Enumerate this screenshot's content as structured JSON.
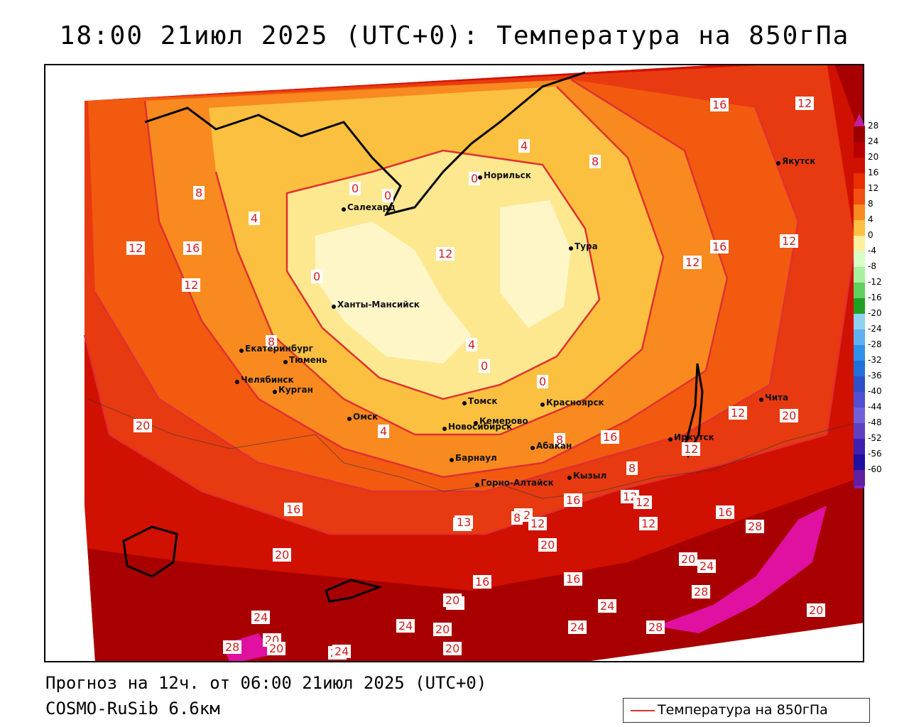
{
  "title": "18:00 21июл 2025 (UTC+0): Температура на 850гПа",
  "footer": {
    "forecast": "Прогноз на 12ч. от 06:00 21июл 2025 (UTC+0)",
    "model": "COSMO-RuSib 6.6км"
  },
  "legend": {
    "label": "Температура на 850гПа",
    "line_color": "#e03030"
  },
  "scale": {
    "ticks": [
      "28",
      "24",
      "20",
      "16",
      "12",
      "8",
      "4",
      "0",
      "-4",
      "-8",
      "-12",
      "-16",
      "-20",
      "-24",
      "-28",
      "-32",
      "-36",
      "-40",
      "-44",
      "-48",
      "-52",
      "-56",
      "-60"
    ],
    "colors": [
      "#9a0000",
      "#b80000",
      "#d01000",
      "#e83000",
      "#f05010",
      "#f88a20",
      "#fcc040",
      "#fff0a0",
      "#d8ffc8",
      "#a8f0a0",
      "#60d060",
      "#20a020",
      "#90d0f0",
      "#60b0f0",
      "#3090e8",
      "#2070d8",
      "#3050c8",
      "#5050d0",
      "#7060d8",
      "#6040c0",
      "#4020b0",
      "#2010a0",
      "#6020a0"
    ]
  },
  "cities": [
    {
      "name": "Норильск"
    },
    {
      "name": "Салехард"
    },
    {
      "name": "Тура"
    },
    {
      "name": "Якутск"
    },
    {
      "name": "Ханты-Мансийск"
    },
    {
      "name": "Екатеринбург"
    },
    {
      "name": "Тюмень"
    },
    {
      "name": "Челябинск"
    },
    {
      "name": "Курган"
    },
    {
      "name": "Омск"
    },
    {
      "name": "Томск"
    },
    {
      "name": "Красноярск"
    },
    {
      "name": "Новосибирск"
    },
    {
      "name": "Кемерово"
    },
    {
      "name": "Абакан"
    },
    {
      "name": "Барнаул"
    },
    {
      "name": "Горно-Алтайск"
    },
    {
      "name": "Кызыл"
    },
    {
      "name": "Иркутск"
    },
    {
      "name": "Чита"
    }
  ],
  "contour_labels": [
    "4",
    "0",
    "0",
    "0",
    "8",
    "8",
    "4",
    "12",
    "12",
    "16",
    "16",
    "12",
    "12",
    "16",
    "12",
    "12",
    "0",
    "4",
    "8",
    "0",
    "0",
    "8",
    "4",
    "16",
    "20",
    "12",
    "20",
    "12",
    "16",
    "8",
    "12",
    "12",
    "12",
    "13",
    "8",
    "12",
    "20",
    "16",
    "16",
    "12",
    "12",
    "28",
    "20",
    "16",
    "24",
    "20",
    "24",
    "28",
    "24",
    "16",
    "28",
    "20",
    "20",
    "20",
    "24",
    "24",
    "24",
    "20",
    "20",
    "24",
    "28",
    "20",
    "24"
  ],
  "colors": {
    "hot_dark": "#a80000",
    "hot": "#d01000",
    "warm": "#f05010",
    "mild": "#fca030",
    "cool": "#fde090",
    "cold": "#fff6c8",
    "extreme": "#e010a0",
    "contour": "#e03030"
  }
}
